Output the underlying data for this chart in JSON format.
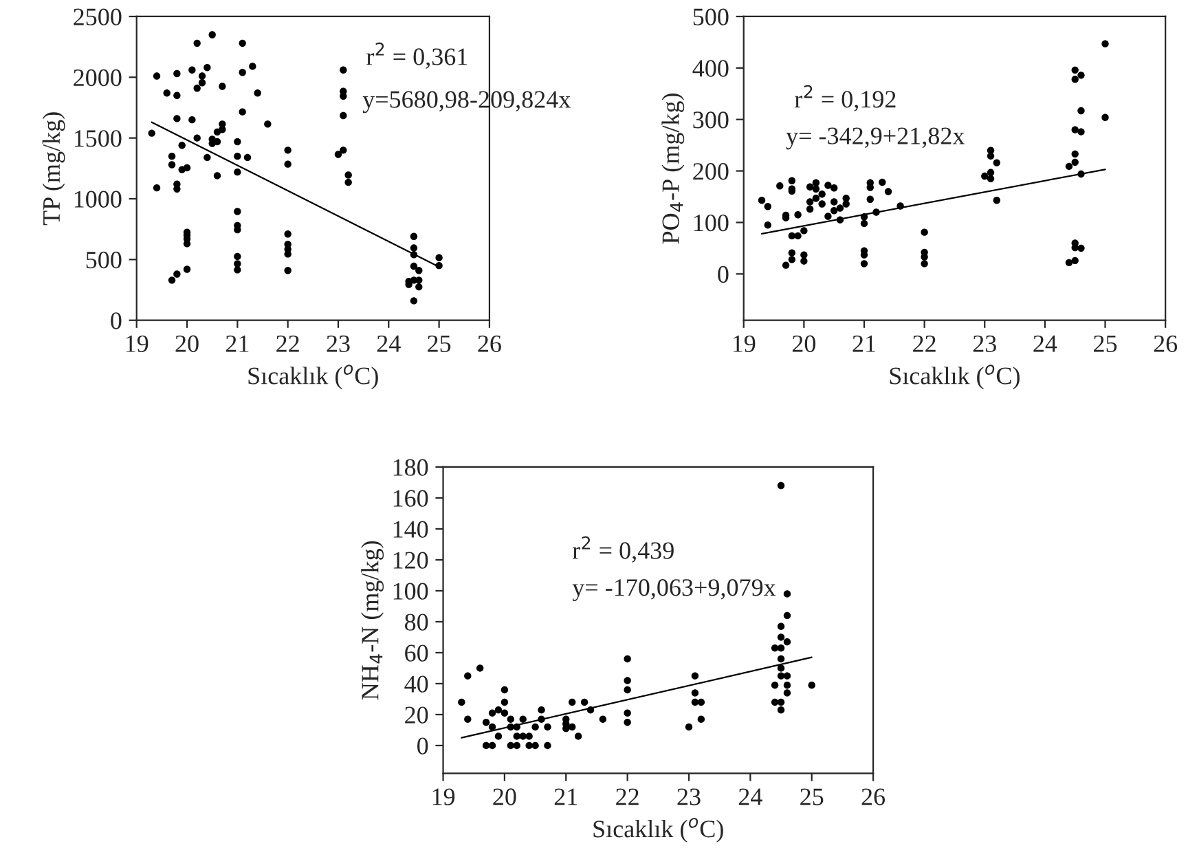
{
  "chart_data": [
    {
      "type": "scatter",
      "xlabel": "Sıcaklık ($^{o}$C)",
      "ylabel": "TP (mg/kg)",
      "xlim": [
        19,
        26
      ],
      "ylim": [
        0,
        2500
      ],
      "xticks": [
        19,
        20,
        21,
        22,
        23,
        24,
        25,
        26
      ],
      "yticks": [
        0,
        500,
        1000,
        1500,
        2000,
        2500
      ],
      "marker": "circle",
      "grid": false,
      "annotations": [
        "r$^{2}$ = 0,361",
        "y=5680,98-209,824x"
      ],
      "series": [
        {
          "type": "scatter",
          "color": "#000000",
          "x": [
            19.4,
            19.3,
            19.4,
            19.6,
            19.8,
            19.8,
            19.8,
            19.7,
            19.7,
            19.8,
            19.8,
            19.9,
            19.9,
            20,
            20,
            20,
            20,
            20,
            20,
            19.7,
            19.8,
            20.1,
            20.1,
            20.2,
            20.2,
            20.2,
            20.3,
            20.3,
            20.4,
            20.4,
            20.5,
            20.5,
            20.5,
            20.6,
            20.6,
            20.6,
            20.7,
            20.7,
            20.7,
            21,
            21,
            21,
            21,
            21,
            21,
            21,
            21,
            21,
            21.1,
            21.1,
            21.1,
            21.2,
            21.3,
            21.4,
            21.6,
            22,
            22,
            22,
            22,
            22,
            22,
            22,
            23.1,
            23.1,
            23.1,
            23.1,
            23.1,
            23,
            23.2,
            23.2,
            24.5,
            24.5,
            24.5,
            24.5,
            24.5,
            24.4,
            24.4,
            24.5,
            24.6,
            24.6,
            24.6,
            25,
            25
          ],
          "values": [
            2010,
            1540,
            1090,
            1870,
            2030,
            1850,
            1660,
            1350,
            1280,
            1120,
            1080,
            1440,
            1240,
            1255,
            725,
            700,
            670,
            630,
            420,
            330,
            380,
            2060,
            1650,
            2280,
            1910,
            1500,
            2010,
            1955,
            2080,
            1340,
            2350,
            1490,
            1455,
            1550,
            1470,
            1190,
            1925,
            1615,
            1570,
            1470,
            1350,
            1220,
            895,
            780,
            745,
            525,
            465,
            415,
            2280,
            2040,
            1715,
            1340,
            2090,
            1870,
            1615,
            1400,
            1285,
            710,
            625,
            585,
            545,
            410,
            2060,
            1885,
            1845,
            1685,
            1400,
            1365,
            1195,
            1135,
            690,
            595,
            540,
            445,
            160,
            295,
            320,
            330,
            410,
            330,
            275,
            515,
            450
          ]
        },
        {
          "type": "line",
          "color": "#000000",
          "marker": "none",
          "line_style": "solid",
          "x": [
            19.3,
            25
          ],
          "values": [
            1630,
            440
          ]
        }
      ]
    },
    {
      "type": "scatter",
      "xlabel": "Sıcaklık ($^{o}$C)",
      "ylabel": "PO$_{4}$-P (mg/kg)",
      "xlim": [
        19,
        26
      ],
      "ylim": [
        -90,
        500
      ],
      "xticks": [
        19,
        20,
        21,
        22,
        23,
        24,
        25,
        26
      ],
      "yticks": [
        0,
        100,
        200,
        300,
        400,
        500
      ],
      "marker": "circle",
      "grid": false,
      "annotations": [
        "r$^{2}$ = 0,192",
        "y= -342,9+21,82x"
      ],
      "series": [
        {
          "type": "scatter",
          "color": "#000000",
          "x": [
            19.3,
            19.4,
            19.4,
            19.6,
            19.7,
            19.7,
            19.7,
            19.8,
            19.8,
            19.8,
            19.8,
            19.8,
            19.8,
            19.9,
            19.9,
            20,
            20,
            20,
            20.1,
            20.1,
            20.1,
            20.2,
            20.2,
            20.2,
            20.3,
            20.3,
            20.4,
            20.4,
            20.5,
            20.5,
            20.5,
            20.6,
            20.6,
            20.7,
            20.7,
            21,
            21,
            21,
            21,
            21,
            21.1,
            21.1,
            21.1,
            21.2,
            21.3,
            21.4,
            21.6,
            22,
            22,
            22,
            22,
            23,
            23.1,
            23.1,
            23.1,
            23.1,
            23.2,
            23.2,
            24.4,
            24.4,
            24.5,
            24.5,
            24.5,
            24.5,
            24.5,
            24.5,
            24.5,
            24.5,
            24.6,
            24.6,
            24.6,
            24.6,
            24.6,
            25,
            25
          ],
          "values": [
            143,
            131,
            95,
            171,
            114,
            109,
            17,
            181,
            165,
            161,
            74,
            41,
            28,
            115,
            74,
            84,
            37,
            25,
            169,
            140,
            126,
            177,
            165,
            147,
            155,
            136,
            172,
            112,
            167,
            140,
            123,
            128,
            105,
            147,
            136,
            111,
            98,
            45,
            37,
            20,
            177,
            168,
            145,
            120,
            178,
            160,
            132,
            81,
            42,
            33,
            20,
            190,
            240,
            229,
            197,
            185,
            216,
            143,
            22,
            209,
            396,
            378,
            280,
            233,
            217,
            60,
            51,
            26,
            386,
            317,
            276,
            194,
            50,
            447,
            304
          ]
        },
        {
          "type": "line",
          "color": "#000000",
          "marker": "none",
          "line_style": "solid",
          "x": [
            19.3,
            25
          ],
          "values": [
            78,
            203
          ]
        }
      ]
    },
    {
      "type": "scatter",
      "xlabel": "Sıcaklık ($^{o}$C)",
      "ylabel": "NH$_{4}$-N (mg/kg)",
      "xlim": [
        19,
        26
      ],
      "ylim": [
        -18,
        180
      ],
      "xticks": [
        19,
        20,
        21,
        22,
        23,
        24,
        25,
        26
      ],
      "yticks": [
        0,
        20,
        40,
        60,
        80,
        100,
        120,
        140,
        160,
        180
      ],
      "marker": "circle",
      "grid": false,
      "annotations": [
        "r$^{2}$ = 0,439",
        "y= -170,063+9,079x"
      ],
      "series": [
        {
          "type": "scatter",
          "color": "#000000",
          "x": [
            19.3,
            19.4,
            19.4,
            19.6,
            19.7,
            19.7,
            19.8,
            19.8,
            19.8,
            19.9,
            19.9,
            20,
            20,
            20,
            20.1,
            20.1,
            20.1,
            20.2,
            20.2,
            20.2,
            20.3,
            20.3,
            20.4,
            20.4,
            20.5,
            20.5,
            20.6,
            20.6,
            20.7,
            20.7,
            21,
            21,
            21,
            21.1,
            21.1,
            21.2,
            21.3,
            21.4,
            21.6,
            22,
            22,
            22,
            22,
            22,
            23,
            23.1,
            23.1,
            23.1,
            23.2,
            23.2,
            24.5,
            24.4,
            24.4,
            24.4,
            24.5,
            24.5,
            24.5,
            24.5,
            24.5,
            24.5,
            24.5,
            24.5,
            24.6,
            24.6,
            24.6,
            24.6,
            24.6,
            24.6,
            25
          ],
          "values": [
            28,
            45,
            17,
            50,
            15,
            0,
            21,
            12,
            0,
            23,
            6,
            36,
            28,
            21,
            17,
            12,
            0,
            12,
            6,
            0,
            17,
            6,
            6,
            0,
            12,
            0,
            23,
            17,
            12,
            0,
            17,
            14,
            11,
            28,
            12,
            6,
            28,
            23,
            17,
            56,
            42,
            36,
            21,
            15,
            12,
            45,
            34,
            28,
            28,
            17,
            168,
            63,
            39,
            28,
            77,
            70,
            63,
            56,
            50,
            45,
            28,
            23,
            98,
            84,
            67,
            45,
            39,
            34,
            39
          ]
        },
        {
          "type": "line",
          "color": "#000000",
          "marker": "none",
          "line_style": "solid",
          "x": [
            19.3,
            25
          ],
          "values": [
            5,
            57
          ]
        }
      ]
    }
  ]
}
